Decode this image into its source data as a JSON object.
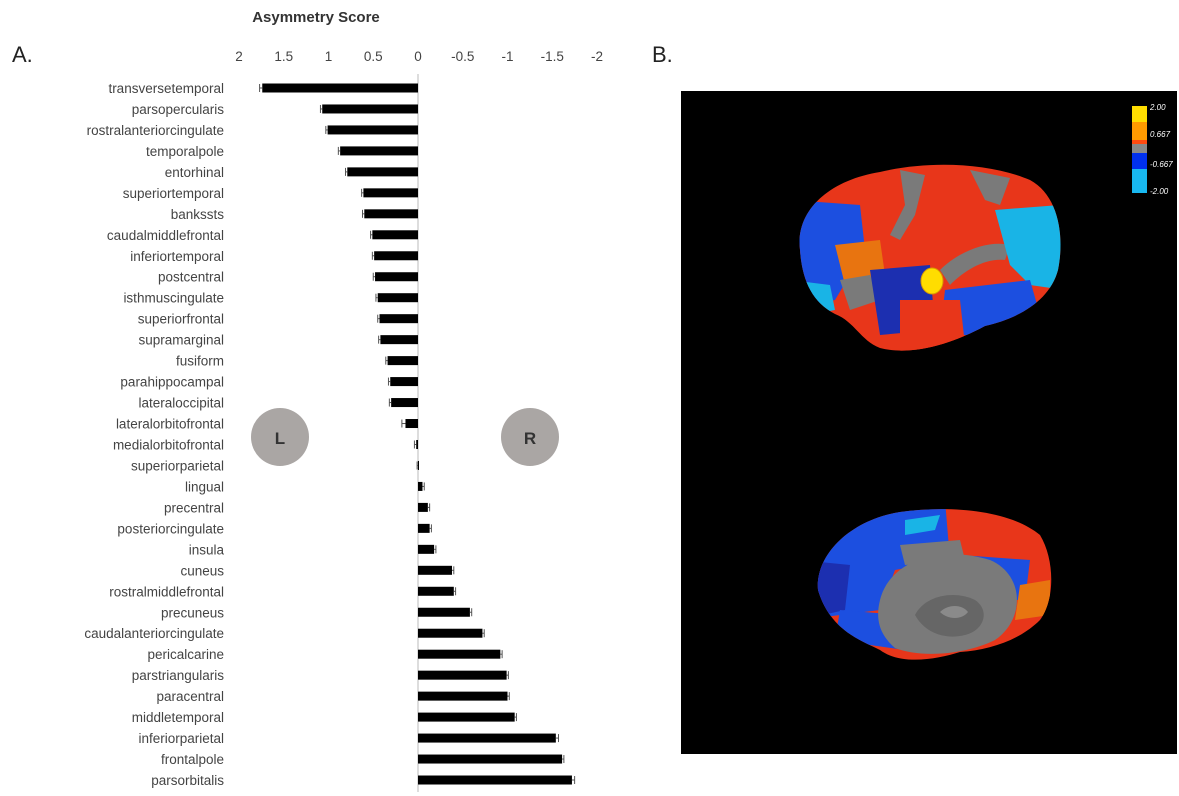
{
  "panels": {
    "a_label": "A.",
    "b_label": "B."
  },
  "hemispheres": {
    "left_label": "L",
    "right_label": "R"
  },
  "chart_data": {
    "type": "bar",
    "orientation": "horizontal",
    "title": "Asymmetry Score",
    "xlabel": "",
    "ylabel": "",
    "xlim": [
      2,
      -2
    ],
    "x_reversed": true,
    "x_ticks": [
      2,
      1.5,
      1,
      0.5,
      0,
      -0.5,
      -1,
      -1.5,
      -2
    ],
    "x_tick_labels": [
      "2",
      "1.5",
      "1",
      "0.5",
      "0",
      "-0.5",
      "-1",
      "-1.5",
      "-2"
    ],
    "bar_color": "#000000",
    "categories": [
      "transversetemporal",
      "parsopercularis",
      "rostralanteriorcingulate",
      "temporalpole",
      "entorhinal",
      "superiortemporal",
      "bankssts",
      "caudalmiddlefrontal",
      "inferiortemporal",
      "postcentral",
      "isthmuscingulate",
      "superiorfrontal",
      "supramarginal",
      "fusiform",
      "parahippocampal",
      "lateraloccipital",
      "lateralorbitofrontal",
      "medialorbitofrontal",
      "superiorparietal",
      "lingual",
      "precentral",
      "posteriorcingulate",
      "insula",
      "cuneus",
      "rostralmiddlefrontal",
      "precuneus",
      "caudalanteriorcingulate",
      "pericalcarine",
      "parstriangularis",
      "paracentral",
      "middletemporal",
      "inferiorparietal",
      "frontalpole",
      "parsorbitalis"
    ],
    "values": [
      1.74,
      1.07,
      1.01,
      0.87,
      0.79,
      0.61,
      0.6,
      0.51,
      0.49,
      0.48,
      0.45,
      0.43,
      0.42,
      0.34,
      0.31,
      0.3,
      0.14,
      0.02,
      0.0,
      -0.05,
      -0.11,
      -0.13,
      -0.18,
      -0.38,
      -0.4,
      -0.58,
      -0.72,
      -0.92,
      -0.99,
      -1.0,
      -1.08,
      -1.54,
      -1.61,
      -1.72
    ],
    "errors": [
      0.03,
      0.02,
      0.02,
      0.02,
      0.02,
      0.02,
      0.02,
      0.02,
      0.02,
      0.02,
      0.02,
      0.02,
      0.02,
      0.02,
      0.02,
      0.02,
      0.04,
      0.02,
      0.01,
      0.02,
      0.02,
      0.02,
      0.02,
      0.02,
      0.02,
      0.02,
      0.02,
      0.02,
      0.02,
      0.02,
      0.02,
      0.03,
      0.02,
      0.03
    ],
    "grid": false
  },
  "brain_panel": {
    "background": "#000000",
    "colorbar": {
      "labels": [
        "2.00",
        "0.667",
        "-0.667",
        "-2.00"
      ],
      "colors": [
        "#ffee00",
        "#ff6600",
        "#888888",
        "#0033ee",
        "#00ccff"
      ]
    },
    "region_colors": {
      "strong_left": "#ffdd00",
      "left": "#e8361a",
      "neutral": "#7a7a7a",
      "right": "#1c4fe0",
      "strong_right": "#19b4e6",
      "accent": "#e87410"
    }
  }
}
